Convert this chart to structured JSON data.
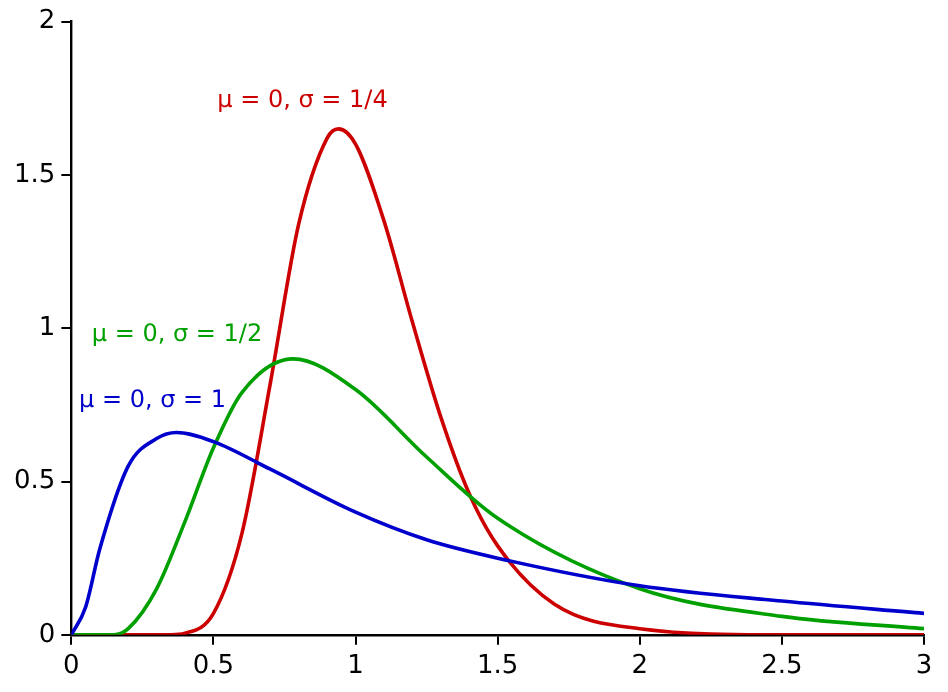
{
  "chart_data": {
    "type": "line",
    "xlim": [
      0,
      3
    ],
    "xticks": [
      0,
      0.5,
      1,
      1.5,
      2,
      2.5,
      3
    ],
    "ylim": [
      0,
      2
    ],
    "yticks": [
      0,
      0.5,
      1,
      1.5,
      2
    ],
    "grid": false,
    "legend": false,
    "marker": "none",
    "line_style": "solid",
    "series": [
      {
        "name": "μ = 0, σ = 1",
        "color": "#0000cc",
        "x": [
          0,
          0.05,
          0.1,
          0.2,
          0.3,
          0.37,
          0.5,
          0.7,
          1,
          1.25,
          1.5,
          2,
          2.5,
          3
        ],
        "values": [
          0,
          0.09,
          0.28,
          0.55,
          0.64,
          0.66,
          0.63,
          0.54,
          0.4,
          0.31,
          0.25,
          0.16,
          0.11,
          0.07
        ]
      },
      {
        "name": "μ = 0, σ = 1/2",
        "color": "#00a000",
        "x": [
          0,
          0.15,
          0.2,
          0.3,
          0.4,
          0.5,
          0.6,
          0.78,
          1,
          1.25,
          1.5,
          2,
          2.5,
          3
        ],
        "values": [
          0,
          0,
          0.02,
          0.15,
          0.37,
          0.61,
          0.79,
          0.9,
          0.8,
          0.58,
          0.38,
          0.15,
          0.06,
          0.02
        ]
      },
      {
        "name": "μ = 0, σ = 1/4",
        "color": "#cc0000",
        "x": [
          0,
          0.35,
          0.4,
          0.5,
          0.6,
          0.7,
          0.8,
          0.9,
          0.94,
          1,
          1.1,
          1.2,
          1.3,
          1.4,
          1.5,
          1.7,
          2,
          2.5,
          3
        ],
        "values": [
          0,
          0,
          0.005,
          0.07,
          0.33,
          0.82,
          1.34,
          1.62,
          1.65,
          1.6,
          1.35,
          1.02,
          0.71,
          0.46,
          0.29,
          0.1,
          0.02,
          0,
          0
        ]
      }
    ]
  }
}
